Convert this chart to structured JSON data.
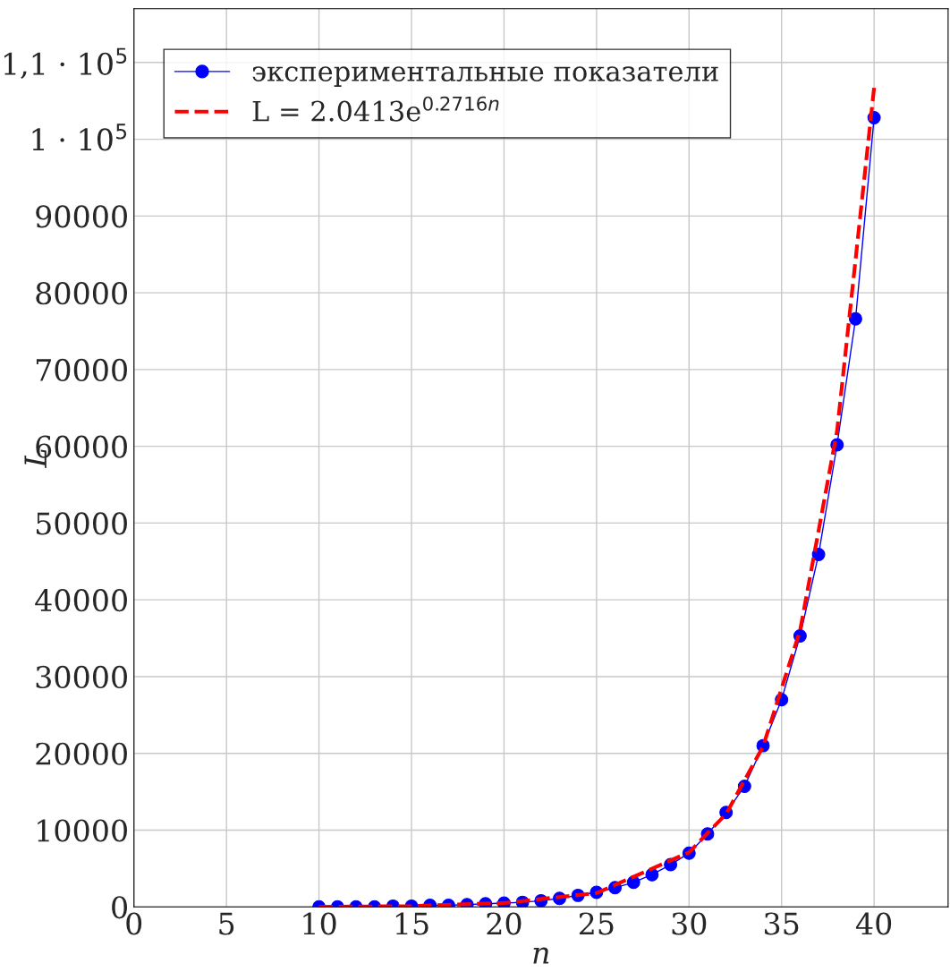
{
  "chart_data": {
    "type": "line",
    "xlabel": "n",
    "ylabel": "L",
    "xlim": [
      0,
      44
    ],
    "xticks": [
      0,
      5,
      10,
      15,
      20,
      25,
      30,
      35,
      40
    ],
    "ylim": [
      0,
      117000
    ],
    "yticks": [
      0,
      10000,
      20000,
      30000,
      40000,
      50000,
      60000,
      70000,
      80000,
      90000,
      {
        "value": 100000,
        "label": "1 · 10$^{5}$"
      },
      {
        "value": 110000,
        "label": "1,1 · 10$^{5}$"
      }
    ],
    "grid": true,
    "legend": "top left",
    "series": [
      {
        "name": "экспериментальные показатели",
        "color": "#0000ff",
        "marker": "circle",
        "line_style": "solid",
        "x": [
          10,
          11,
          12,
          13,
          14,
          15,
          16,
          17,
          18,
          19,
          20,
          21,
          22,
          23,
          24,
          25,
          26,
          27,
          28,
          29,
          30,
          31,
          32,
          33,
          34,
          35,
          36,
          37,
          38,
          39,
          40
        ],
        "values": [
          0,
          0,
          0,
          0,
          100,
          100,
          200,
          200,
          300,
          400,
          500,
          600,
          800,
          1100,
          1500,
          1900,
          2500,
          3200,
          4200,
          5500,
          7000,
          9500,
          12300,
          15700,
          21000,
          27000,
          35300,
          45900,
          60200,
          76600,
          102800
        ]
      },
      {
        "name": "L = 2.0413e$^{0.2716n}$",
        "color": "#ff0000",
        "marker": "none",
        "line_style": "dashed",
        "x": [
          10,
          15,
          20,
          25,
          30,
          32,
          34,
          36,
          38,
          40
        ],
        "values": [
          0,
          100,
          500,
          1800,
          7100,
          12100,
          20900,
          36000,
          62000,
          106700
        ]
      }
    ]
  }
}
